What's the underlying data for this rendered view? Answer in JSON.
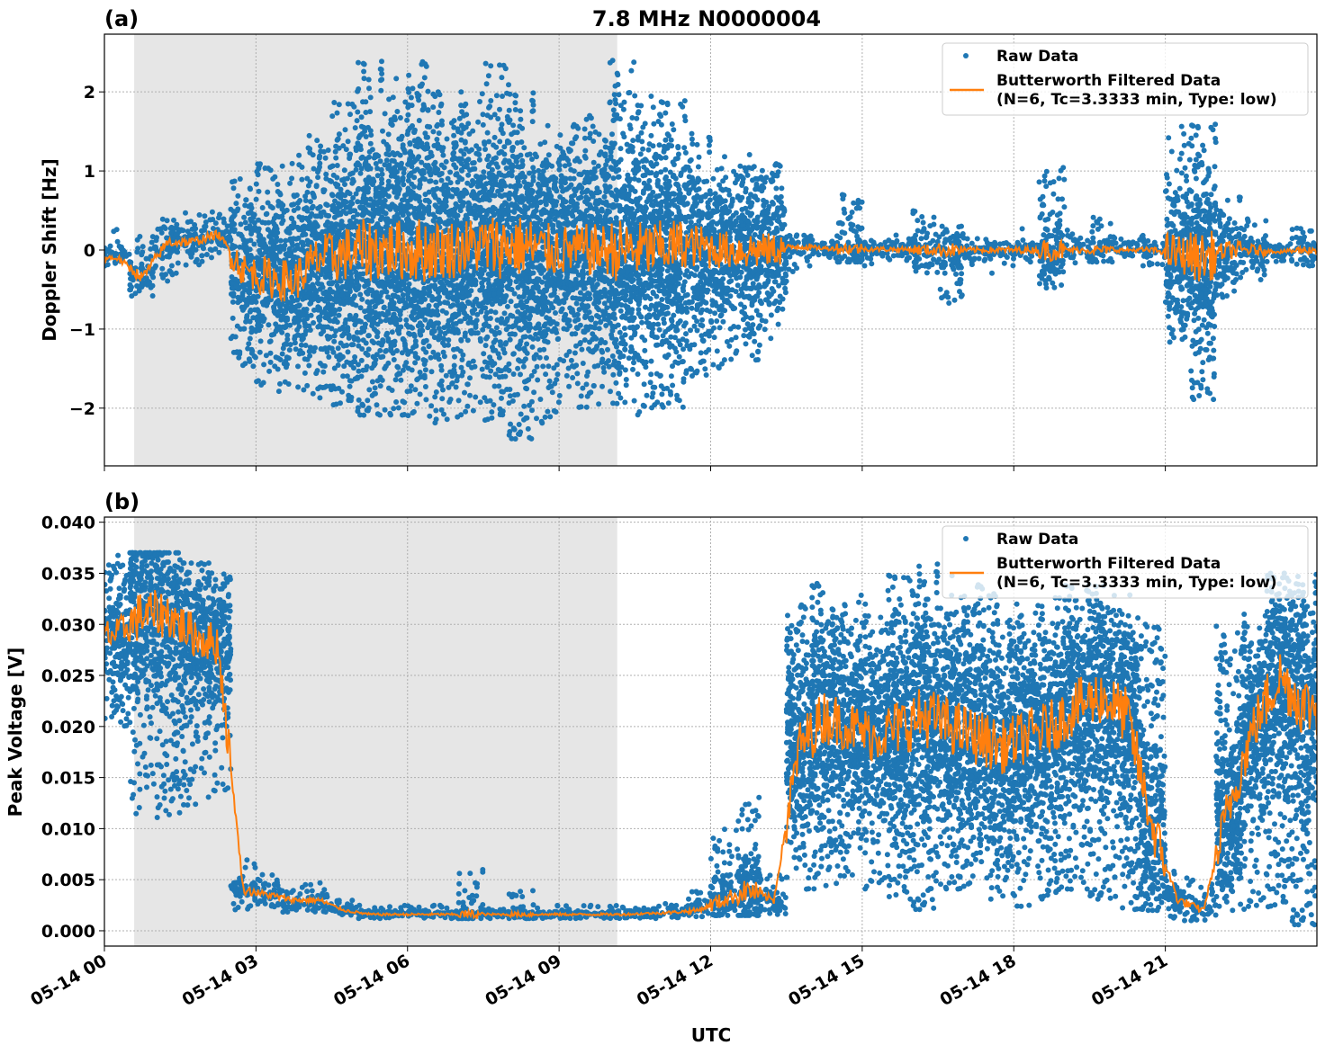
{
  "chart_data": [
    {
      "type": "scatter",
      "panel_label": "(a)",
      "title": "7.8 MHz N0000004",
      "xlabel": "",
      "ylabel": "Doppler Shift [Hz]",
      "xlim_hours": [
        0,
        24
      ],
      "ylim": [
        -2.73,
        2.73
      ],
      "yticks": [
        2,
        1,
        0,
        -1,
        -2
      ],
      "ytick_labels": [
        "2",
        "1",
        "0",
        "−1",
        "−2"
      ],
      "grid": true,
      "shaded_interval_hours": [
        0.59,
        10.15
      ],
      "legend": {
        "placement": "top-right",
        "entries": [
          "Raw Data",
          "Butterworth Filtered Data",
          "(N=6, Tc=3.3333 min, Type: low)"
        ]
      },
      "bin_hours": 0.5,
      "raw_envelope_lo": [
        -0.2,
        -0.6,
        -0.4,
        -0.2,
        -0.1,
        -1.5,
        -1.8,
        -1.8,
        -1.9,
        -2.0,
        -2.1,
        -2.1,
        -2.3,
        -2.2,
        -2.1,
        -2.2,
        -2.4,
        -2.2,
        -2.0,
        -2.0,
        -2.0,
        -2.1,
        -2.0,
        -1.6,
        -1.5,
        -1.4,
        -1.3,
        -0.3,
        -0.15,
        -0.15,
        -0.2,
        -0.15,
        -0.3,
        -0.7,
        -0.2,
        -0.3,
        -0.15,
        -0.5,
        -0.2,
        -0.15,
        -0.15,
        -0.2,
        -1.2,
        -1.9,
        -0.6,
        -0.4,
        -0.15,
        -0.2
      ],
      "raw_envelope_hi": [
        0.3,
        0.2,
        0.4,
        0.5,
        0.5,
        0.9,
        1.1,
        1.2,
        1.5,
        1.9,
        2.4,
        2.2,
        2.4,
        2.0,
        2.0,
        2.4,
        2.0,
        1.6,
        1.6,
        1.7,
        2.4,
        2.0,
        1.9,
        1.5,
        1.2,
        1.4,
        1.1,
        0.2,
        0.15,
        0.7,
        0.15,
        0.2,
        0.5,
        0.3,
        0.2,
        0.15,
        0.3,
        1.05,
        0.25,
        0.45,
        0.15,
        0.2,
        1.6,
        1.6,
        0.7,
        0.4,
        0.1,
        0.4
      ],
      "filtered_mean": [
        -0.1,
        -0.35,
        0.1,
        0.1,
        0.2,
        -0.25,
        -0.35,
        -0.4,
        -0.1,
        -0.05,
        0.0,
        0.0,
        0.0,
        0.0,
        0.05,
        0.05,
        0.05,
        0.0,
        0.0,
        0.0,
        0.0,
        0.0,
        0.05,
        0.05,
        0.0,
        0.0,
        0.0,
        0.05,
        0.02,
        0.02,
        0.01,
        0.01,
        0.0,
        0.0,
        0.0,
        0.0,
        0.0,
        0.0,
        0.0,
        0.0,
        0.0,
        0.0,
        -0.05,
        -0.1,
        0.0,
        0.0,
        -0.02,
        0.0
      ],
      "x_tick_labels": [
        "05-14 00",
        "05-14 03",
        "05-14 06",
        "05-14 09",
        "05-14 12",
        "05-14 15",
        "05-14 18",
        "05-14 21"
      ]
    },
    {
      "type": "scatter",
      "panel_label": "(b)",
      "title": "",
      "xlabel": "UTC",
      "ylabel": "Peak Voltage [V]",
      "xlim_hours": [
        0,
        24
      ],
      "ylim": [
        -0.0015,
        0.0405
      ],
      "yticks": [
        0.04,
        0.035,
        0.03,
        0.025,
        0.02,
        0.015,
        0.01,
        0.005,
        0.0
      ],
      "ytick_labels": [
        "0.040",
        "0.035",
        "0.030",
        "0.025",
        "0.020",
        "0.015",
        "0.010",
        "0.005",
        "0.000"
      ],
      "grid": true,
      "shaded_interval_hours": [
        0.59,
        10.15
      ],
      "legend": {
        "placement": "top-right",
        "entries": [
          "Raw Data",
          "Butterworth Filtered Data",
          "(N=6, Tc=3.3333 min, Type: low)"
        ]
      },
      "bin_hours": 0.5,
      "raw_envelope_lo": [
        0.02,
        0.01,
        0.011,
        0.012,
        0.013,
        0.002,
        0.002,
        0.0018,
        0.0018,
        0.0015,
        0.0012,
        0.0012,
        0.0012,
        0.0012,
        0.0012,
        0.0012,
        0.0012,
        0.0012,
        0.0012,
        0.0012,
        0.0012,
        0.0012,
        0.0013,
        0.0014,
        0.0015,
        0.0015,
        0.0015,
        0.004,
        0.004,
        0.005,
        0.004,
        0.003,
        0.002,
        0.004,
        0.003,
        0.003,
        0.002,
        0.003,
        0.004,
        0.003,
        0.002,
        0.002,
        0.001,
        0.001,
        0.002,
        0.002,
        0.002,
        0.0005
      ],
      "raw_envelope_hi": [
        0.038,
        0.037,
        0.037,
        0.036,
        0.036,
        0.007,
        0.006,
        0.005,
        0.005,
        0.003,
        0.0025,
        0.0025,
        0.0025,
        0.0025,
        0.006,
        0.0025,
        0.004,
        0.0025,
        0.0025,
        0.0025,
        0.0025,
        0.0025,
        0.003,
        0.004,
        0.01,
        0.014,
        0.006,
        0.032,
        0.034,
        0.033,
        0.032,
        0.035,
        0.036,
        0.035,
        0.034,
        0.033,
        0.032,
        0.033,
        0.034,
        0.034,
        0.033,
        0.03,
        0.006,
        0.005,
        0.03,
        0.031,
        0.035,
        0.035
      ],
      "filtered_mean": [
        0.029,
        0.031,
        0.031,
        0.029,
        0.028,
        0.004,
        0.0035,
        0.003,
        0.003,
        0.002,
        0.0016,
        0.0016,
        0.0016,
        0.0016,
        0.0016,
        0.0016,
        0.0016,
        0.0016,
        0.0016,
        0.0016,
        0.0016,
        0.0017,
        0.0018,
        0.002,
        0.003,
        0.004,
        0.003,
        0.018,
        0.021,
        0.02,
        0.019,
        0.02,
        0.021,
        0.02,
        0.019,
        0.018,
        0.019,
        0.02,
        0.022,
        0.023,
        0.021,
        0.01,
        0.003,
        0.002,
        0.012,
        0.02,
        0.025,
        0.022
      ],
      "x_tick_labels": [
        "05-14 00",
        "05-14 03",
        "05-14 06",
        "05-14 09",
        "05-14 12",
        "05-14 15",
        "05-14 18",
        "05-14 21"
      ]
    }
  ],
  "colors": {
    "raw": "#1f77b4",
    "filtered": "#ff7f0e",
    "shade": "#e6e6e6"
  }
}
